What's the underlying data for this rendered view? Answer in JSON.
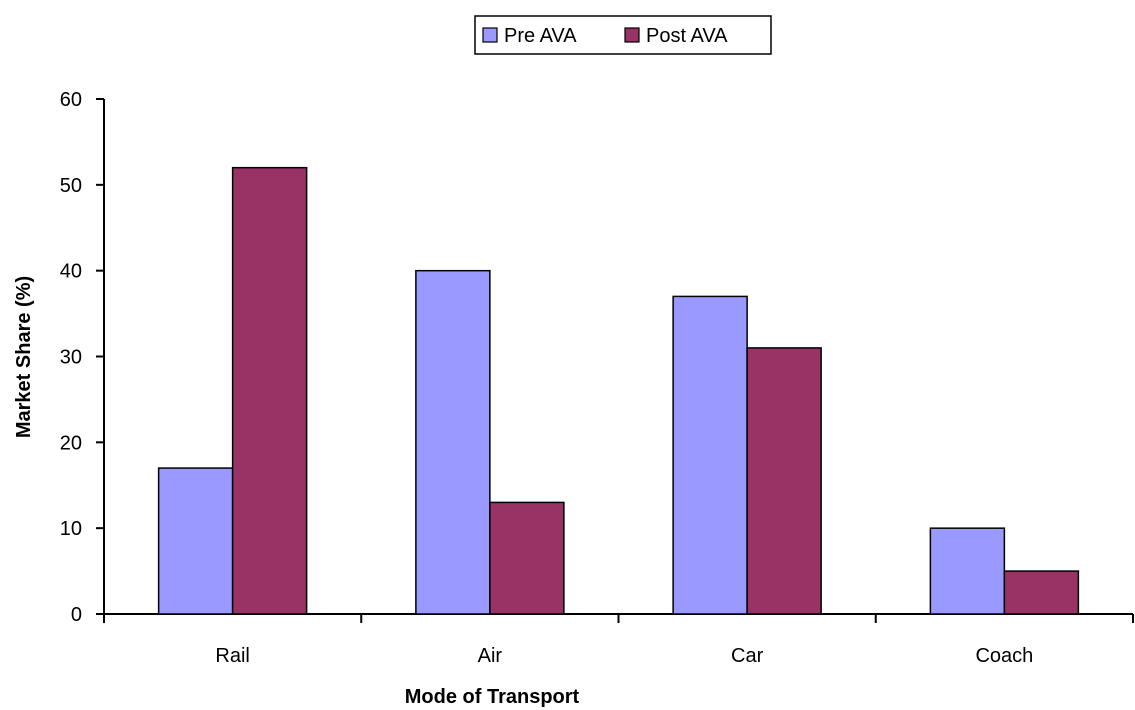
{
  "chart_data": {
    "type": "bar",
    "categories": [
      "Rail",
      "Air",
      "Car",
      "Coach"
    ],
    "series": [
      {
        "name": "Pre AVA",
        "values": [
          17,
          40,
          37,
          10
        ],
        "color": "#9999FF"
      },
      {
        "name": "Post AVA",
        "values": [
          52,
          13,
          31,
          5
        ],
        "color": "#993366"
      }
    ],
    "title": "",
    "xlabel": "Mode of Transport",
    "ylabel": "Market Share (%)",
    "ylim": [
      0,
      60
    ],
    "yticks": [
      0,
      10,
      20,
      30,
      40,
      50,
      60
    ],
    "grid": false,
    "legend_position": "top-center"
  }
}
